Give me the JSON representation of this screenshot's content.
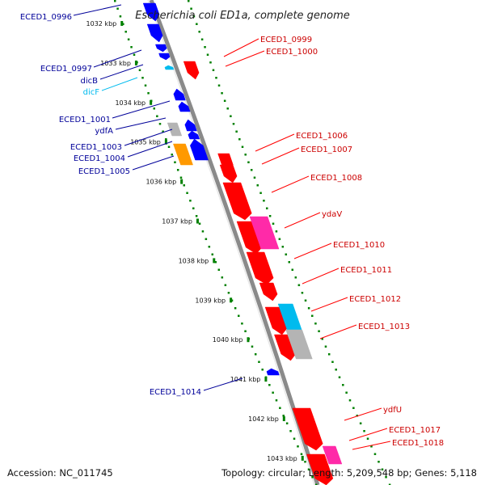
{
  "title": "Escherichia coli ED1a, complete genome",
  "footer": {
    "accession": "Accession: NC_011745",
    "topology": "Topology: circular; Length: 5,209,548 bp; Genes: 5,118"
  },
  "colors": {
    "forward_gene": "#ff0000",
    "reverse_gene": "#0000ff",
    "forward_label": "#cc0000",
    "reverse_label": "#000099",
    "trna": "#00bbee",
    "pseudo": "#b4b4b4",
    "orange_gene": "#ff9900",
    "magenta_gene": "#ff2aa8",
    "backbone": "#8a8a8a",
    "ticks": "#008000"
  },
  "kbp_ticks": [
    "1032 kbp",
    "1033 kbp",
    "1034 kbp",
    "1035 kbp",
    "1036 kbp",
    "1037 kbp",
    "1038 kbp",
    "1039 kbp",
    "1040 kbp",
    "1041 kbp",
    "1042 kbp",
    "1043 kbp"
  ],
  "left_labels": [
    "ECED1_0996",
    "ECED1_0997",
    "dicB",
    "dicF",
    "ECED1_1001",
    "ydfA",
    "ECED1_1003",
    "ECED1_1004",
    "ECED1_1005",
    "ECED1_1014"
  ],
  "right_labels": [
    "ECED1_0999",
    "ECED1_1000",
    "ECED1_1006",
    "ECED1_1007",
    "ECED1_1008",
    "ydaV",
    "ECED1_1010",
    "ECED1_1011",
    "ECED1_1012",
    "ECED1_1013",
    "ydfU",
    "ECED1_1017",
    "ECED1_1018"
  ]
}
